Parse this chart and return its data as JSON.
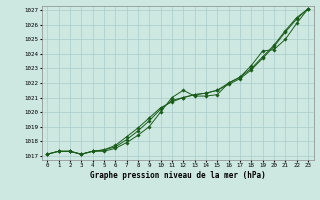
{
  "title": "Graphe pression niveau de la mer (hPa)",
  "background_color": "#cce8e0",
  "grid_color": "#aacccc",
  "line_color": "#1a5c1a",
  "x_min": 0,
  "x_max": 23,
  "y_min": 1017,
  "y_max": 1027,
  "x": [
    0,
    1,
    2,
    3,
    4,
    5,
    6,
    7,
    8,
    9,
    10,
    11,
    12,
    13,
    14,
    15,
    16,
    17,
    18,
    19,
    20,
    21,
    22,
    23
  ],
  "values1": [
    1017.1,
    1017.3,
    1017.3,
    1017.1,
    1017.3,
    1017.3,
    1017.5,
    1017.9,
    1018.4,
    1019.0,
    1020.0,
    1021.0,
    1021.5,
    1021.1,
    1021.1,
    1021.2,
    1022.0,
    1022.4,
    1023.2,
    1024.2,
    1024.3,
    1025.0,
    1026.1,
    1027.1
  ],
  "values2": [
    1017.1,
    1017.3,
    1017.3,
    1017.1,
    1017.3,
    1017.4,
    1017.6,
    1018.1,
    1018.7,
    1019.4,
    1020.2,
    1020.8,
    1021.0,
    1021.2,
    1021.3,
    1021.5,
    1021.9,
    1022.3,
    1022.9,
    1023.7,
    1024.5,
    1025.5,
    1026.4,
    1027.1
  ],
  "values3": [
    1017.1,
    1017.3,
    1017.3,
    1017.1,
    1017.3,
    1017.4,
    1017.7,
    1018.3,
    1018.9,
    1019.6,
    1020.3,
    1020.7,
    1021.0,
    1021.2,
    1021.3,
    1021.5,
    1022.0,
    1022.4,
    1023.0,
    1023.8,
    1024.6,
    1025.6,
    1026.5,
    1027.1
  ],
  "yticks": [
    1017,
    1018,
    1019,
    1020,
    1021,
    1022,
    1023,
    1024,
    1025,
    1026,
    1027
  ],
  "xticks": [
    0,
    1,
    2,
    3,
    4,
    5,
    6,
    7,
    8,
    9,
    10,
    11,
    12,
    13,
    14,
    15,
    16,
    17,
    18,
    19,
    20,
    21,
    22,
    23
  ],
  "figwidth": 3.2,
  "figheight": 2.0,
  "dpi": 100
}
